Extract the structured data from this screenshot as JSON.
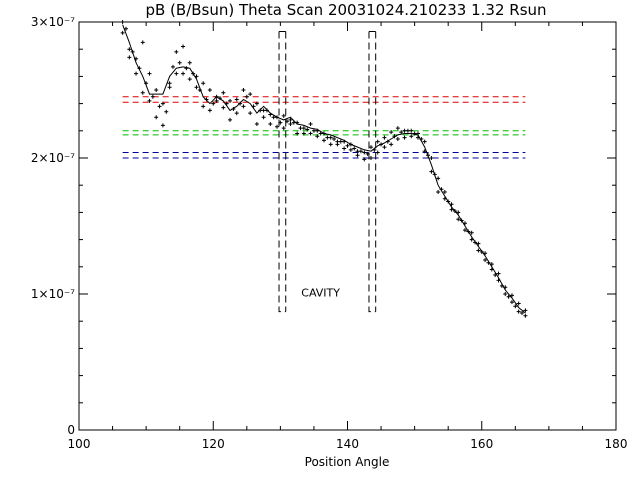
{
  "chart_data": {
    "type": "scatter",
    "title": "pB (B/Bsun) Theta Scan 20031024.210233 1.32 Rsun",
    "xlabel": "Position Angle",
    "ylabel": "",
    "xlim": [
      100,
      180
    ],
    "ylim": [
      0,
      3e-07
    ],
    "x_ticks": [
      {
        "value": 100,
        "label": "100"
      },
      {
        "value": 120,
        "label": "120"
      },
      {
        "value": 140,
        "label": "140"
      },
      {
        "value": 160,
        "label": "160"
      },
      {
        "value": 180,
        "label": "180"
      }
    ],
    "y_ticks": [
      {
        "value": 0,
        "label": "0"
      },
      {
        "value": 1e-07,
        "label": "1×10⁻⁷"
      },
      {
        "value": 2e-07,
        "label": "2×10⁻⁷"
      },
      {
        "value": 3e-07,
        "label": "3×10⁻⁷"
      }
    ],
    "grid": false,
    "colors": {
      "axes": "#000000",
      "red": "#dd0000",
      "green": "#00bb00",
      "blue": "#000099",
      "annotation": "#dd0000"
    },
    "annotation": {
      "text": "CAVITY",
      "x": 136,
      "y": 9.8e-08
    },
    "series": [
      {
        "kind": "smooth-line",
        "x": [
          106.5,
          107.5,
          108.5,
          109.5,
          110.5,
          111.5,
          112.5,
          113.5,
          114.5,
          115.5,
          116.5,
          117.5,
          118.5,
          119.5,
          120.5,
          121.5,
          122.5,
          123.5,
          124.5,
          125.5,
          126.5,
          127.5,
          128.5,
          129.5,
          130.5,
          131.5,
          132.5,
          133.5,
          134.5,
          135.5,
          136.5,
          137.5,
          138.5,
          139.5,
          140.5,
          141.5,
          142.5,
          143.5,
          144.5,
          145.5,
          146.5,
          147.5,
          148.5,
          149.5,
          150.5,
          151.5,
          152.5,
          153.5,
          154.5,
          155.5,
          156.5,
          157.5,
          158.5,
          159.5,
          160.5,
          161.5,
          162.5,
          163.5,
          164.5,
          165.5,
          166.5
        ],
        "y": [
          2.98e-07,
          2.85e-07,
          2.7e-07,
          2.6e-07,
          2.47e-07,
          2.47e-07,
          2.47e-07,
          2.6e-07,
          2.66e-07,
          2.67e-07,
          2.66e-07,
          2.58e-07,
          2.45e-07,
          2.4e-07,
          2.45e-07,
          2.42e-07,
          2.35e-07,
          2.38e-07,
          2.43e-07,
          2.4e-07,
          2.33e-07,
          2.38e-07,
          2.33e-07,
          2.3e-07,
          2.28e-07,
          2.3e-07,
          2.25e-07,
          2.24e-07,
          2.22e-07,
          2.21e-07,
          2.18e-07,
          2.17e-07,
          2.15e-07,
          2.13e-07,
          2.1e-07,
          2.08e-07,
          2.06e-07,
          2.05e-07,
          2.09e-07,
          2.11e-07,
          2.14e-07,
          2.17e-07,
          2.18e-07,
          2.18e-07,
          2.17e-07,
          2.08e-07,
          1.95e-07,
          1.8e-07,
          1.72e-07,
          1.64e-07,
          1.58e-07,
          1.5e-07,
          1.42e-07,
          1.35e-07,
          1.28e-07,
          1.2e-07,
          1.12e-07,
          1.03e-07,
          9.7e-08,
          9e-08,
          8.6e-08
        ]
      },
      {
        "kind": "points",
        "x": [
          106.5,
          107.5,
          108.5,
          109.5,
          110.5,
          111.5,
          112.5,
          113.5,
          114.5,
          115.5,
          116.5,
          117.5,
          118.5,
          119.5,
          120.5,
          121.5,
          122.5,
          123.5,
          124.5,
          125.5,
          126.5,
          127.5,
          128.5,
          129.5,
          130.5,
          131.5,
          132.5,
          133.5,
          134.5,
          135.5,
          136.5,
          137.5,
          138.5,
          139.5,
          140.5,
          141.5,
          142.5,
          143.5,
          144.5,
          145.5,
          146.5,
          147.5,
          148.5,
          149.5,
          150.5,
          151.5,
          152.5,
          153.5,
          154.5,
          155.5,
          156.5,
          157.5,
          158.5,
          159.5,
          160.5,
          161.5,
          162.5,
          163.5,
          164.5,
          165.5,
          166.5
        ],
        "y": [
          3e-07,
          2.8e-07,
          2.73e-07,
          2.85e-07,
          2.62e-07,
          2.5e-07,
          2.4e-07,
          2.52e-07,
          2.78e-07,
          2.82e-07,
          2.7e-07,
          2.6e-07,
          2.55e-07,
          2.5e-07,
          2.45e-07,
          2.48e-07,
          2.42e-07,
          2.43e-07,
          2.5e-07,
          2.47e-07,
          2.4e-07,
          2.35e-07,
          2.32e-07,
          2.3e-07,
          2.31e-07,
          2.28e-07,
          2.26e-07,
          2.22e-07,
          2.25e-07,
          2.2e-07,
          2.18e-07,
          2.15e-07,
          2.12e-07,
          2.12e-07,
          2.1e-07,
          2.05e-07,
          2.04e-07,
          2.08e-07,
          2.12e-07,
          2.15e-07,
          2.19e-07,
          2.22e-07,
          2.2e-07,
          2.2e-07,
          2.18e-07,
          2.12e-07,
          2e-07,
          1.85e-07,
          1.75e-07,
          1.66e-07,
          1.6e-07,
          1.52e-07,
          1.45e-07,
          1.37e-07,
          1.3e-07,
          1.22e-07,
          1.15e-07,
          1.05e-07,
          9.9e-08,
          9.3e-08,
          8.8e-08
        ]
      },
      {
        "kind": "points",
        "x": [
          106.5,
          107.5,
          108.5,
          109.5,
          110.5,
          111.5,
          112.5,
          113.5,
          114.5,
          115.5,
          116.5,
          117.5,
          118.5,
          119.5,
          120.5,
          121.5,
          122.5,
          123.5,
          124.5,
          125.5,
          126.5,
          127.5,
          128.5,
          129.5,
          130.5,
          131.5,
          132.5,
          133.5,
          134.5,
          135.5,
          136.5,
          137.5,
          138.5,
          139.5,
          140.5,
          141.5,
          142.5,
          143.5,
          144.5,
          145.5,
          146.5,
          147.5,
          148.5,
          149.5,
          150.5,
          151.5,
          152.5,
          153.5,
          154.5,
          155.5,
          156.5,
          157.5,
          158.5,
          159.5,
          160.5,
          161.5,
          162.5,
          163.5,
          164.5,
          165.5,
          166.5
        ],
        "y": [
          2.92e-07,
          2.74e-07,
          2.62e-07,
          2.48e-07,
          2.42e-07,
          2.3e-07,
          2.24e-07,
          2.55e-07,
          2.62e-07,
          2.62e-07,
          2.58e-07,
          2.52e-07,
          2.38e-07,
          2.35e-07,
          2.42e-07,
          2.37e-07,
          2.28e-07,
          2.33e-07,
          2.38e-07,
          2.33e-07,
          2.25e-07,
          2.3e-07,
          2.25e-07,
          2.23e-07,
          2.22e-07,
          2.25e-07,
          2.18e-07,
          2.18e-07,
          2.18e-07,
          2.16e-07,
          2.13e-07,
          2.1e-07,
          2.1e-07,
          2.07e-07,
          2.06e-07,
          2.02e-07,
          1.99e-07,
          2e-07,
          2.04e-07,
          2.08e-07,
          2.1e-07,
          2.14e-07,
          2.15e-07,
          2.16e-07,
          2.15e-07,
          2.05e-07,
          1.9e-07,
          1.75e-07,
          1.7e-07,
          1.62e-07,
          1.55e-07,
          1.47e-07,
          1.4e-07,
          1.32e-07,
          1.25e-07,
          1.18e-07,
          1.1e-07,
          1e-07,
          9.4e-08,
          8.7e-08,
          8.4e-08
        ]
      },
      {
        "kind": "points",
        "x": [
          107.0,
          108.0,
          109.0,
          110.0,
          111.0,
          112.0,
          113.0,
          114.0,
          115.0,
          116.0,
          117.0,
          118.0,
          119.0,
          120.0,
          121.0,
          122.0,
          123.0,
          124.0,
          125.0,
          126.0,
          127.0,
          128.0,
          129.0,
          130.0,
          131.0,
          132.0,
          133.0,
          134.0,
          135.0,
          136.0,
          137.0,
          138.0,
          139.0,
          140.0,
          141.0,
          142.0,
          143.0,
          144.0,
          145.0,
          146.0,
          147.0,
          148.0,
          149.0,
          150.0,
          151.0,
          152.0,
          153.0,
          154.0,
          155.0,
          156.0,
          157.0,
          158.0,
          159.0,
          160.0,
          161.0,
          162.0,
          163.0,
          164.0,
          165.0,
          166.0
        ],
        "y": [
          2.95e-07,
          2.78e-07,
          2.66e-07,
          2.55e-07,
          2.45e-07,
          2.38e-07,
          2.34e-07,
          2.67e-07,
          2.7e-07,
          2.66e-07,
          2.62e-07,
          2.5e-07,
          2.43e-07,
          2.4e-07,
          2.44e-07,
          2.4e-07,
          2.36e-07,
          2.4e-07,
          2.45e-07,
          2.38e-07,
          2.35e-07,
          2.35e-07,
          2.3e-07,
          2.26e-07,
          2.27e-07,
          2.26e-07,
          2.22e-07,
          2.21e-07,
          2.2e-07,
          2.18e-07,
          2.15e-07,
          2.14e-07,
          2.12e-07,
          2.09e-07,
          2.07e-07,
          2.05e-07,
          2.03e-07,
          2.06e-07,
          2.1e-07,
          2.12e-07,
          2.16e-07,
          2.19e-07,
          2.2e-07,
          2.18e-07,
          2.14e-07,
          2.02e-07,
          1.88e-07,
          1.77e-07,
          1.68e-07,
          1.61e-07,
          1.54e-07,
          1.46e-07,
          1.38e-07,
          1.31e-07,
          1.23e-07,
          1.14e-07,
          1.06e-07,
          9.8e-08,
          9.1e-08,
          8.6e-08
        ]
      }
    ],
    "horizontal_lines": [
      {
        "y": 2.45e-07,
        "x": [
          106.5,
          166.5
        ],
        "color": "#dd0000"
      },
      {
        "y": 2.41e-07,
        "x": [
          106.5,
          166.5
        ],
        "color": "#dd0000"
      },
      {
        "y": 2.2e-07,
        "x": [
          106.5,
          166.5
        ],
        "color": "#00bb00"
      },
      {
        "y": 2.17e-07,
        "x": [
          106.5,
          166.5
        ],
        "color": "#00bb00"
      },
      {
        "y": 2.04e-07,
        "x": [
          106.5,
          166.5
        ],
        "color": "#000099"
      },
      {
        "y": 2e-07,
        "x": [
          106.5,
          166.5
        ],
        "color": "#000099"
      }
    ],
    "cavity_boundaries": [
      {
        "x": [
          129.8,
          130.8
        ],
        "y": [
          8.7e-08,
          2.93e-07
        ]
      },
      {
        "x": [
          143.2,
          144.2
        ],
        "y": [
          8.7e-08,
          2.93e-07
        ]
      }
    ]
  }
}
